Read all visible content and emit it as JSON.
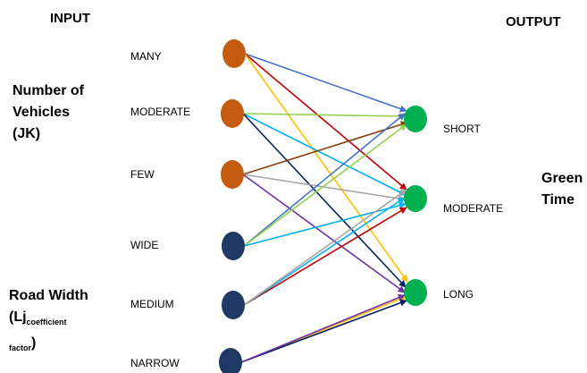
{
  "header": {
    "input": "INPUT",
    "output": "OUTPUT"
  },
  "groups": {
    "vehicles": [
      "Number of",
      "Vehicles",
      "(JK)"
    ],
    "road_width": {
      "line1": "Road Width",
      "line2_prefix": "(Lj",
      "sub1": "coefficient",
      "sub2": "factor",
      "close": ")"
    },
    "green_time": [
      "Green",
      "Time"
    ]
  },
  "inputs": [
    {
      "label": "MANY",
      "color": "#c55a11"
    },
    {
      "label": "MODERATE",
      "color": "#c55a11"
    },
    {
      "label": "FEW",
      "color": "#c55a11"
    },
    {
      "label": "WIDE",
      "color": "#1f3864"
    },
    {
      "label": "MEDIUM",
      "color": "#1f3864"
    },
    {
      "label": "NARROW",
      "color": "#1f3864"
    }
  ],
  "outputs": [
    {
      "label": "SHORT",
      "color": "#00b050"
    },
    {
      "label": "MODERATE",
      "color": "#00b050"
    },
    {
      "label": "LONG",
      "color": "#00b050"
    }
  ],
  "edges": [
    {
      "from": 0,
      "to": 0,
      "color": "#4472c4"
    },
    {
      "from": 0,
      "to": 1,
      "color": "#c00000"
    },
    {
      "from": 0,
      "to": 2,
      "color": "#ffc000"
    },
    {
      "from": 1,
      "to": 0,
      "color": "#92d050"
    },
    {
      "from": 1,
      "to": 1,
      "color": "#00b0f0"
    },
    {
      "from": 1,
      "to": 2,
      "color": "#002060"
    },
    {
      "from": 2,
      "to": 0,
      "color": "#843c0c"
    },
    {
      "from": 2,
      "to": 1,
      "color": "#a6a6a6"
    },
    {
      "from": 2,
      "to": 2,
      "color": "#7030a0"
    },
    {
      "from": 3,
      "to": 0,
      "color": "#4472c4"
    },
    {
      "from": 3,
      "to": 0,
      "color": "#92d050"
    },
    {
      "from": 3,
      "to": 1,
      "color": "#00b0f0"
    },
    {
      "from": 4,
      "to": 1,
      "color": "#c00000"
    },
    {
      "from": 4,
      "to": 1,
      "color": "#00b0f0"
    },
    {
      "from": 4,
      "to": 1,
      "color": "#a6a6a6"
    },
    {
      "from": 5,
      "to": 2,
      "color": "#ffc000"
    },
    {
      "from": 5,
      "to": 2,
      "color": "#002060"
    },
    {
      "from": 5,
      "to": 2,
      "color": "#7030a0"
    }
  ]
}
